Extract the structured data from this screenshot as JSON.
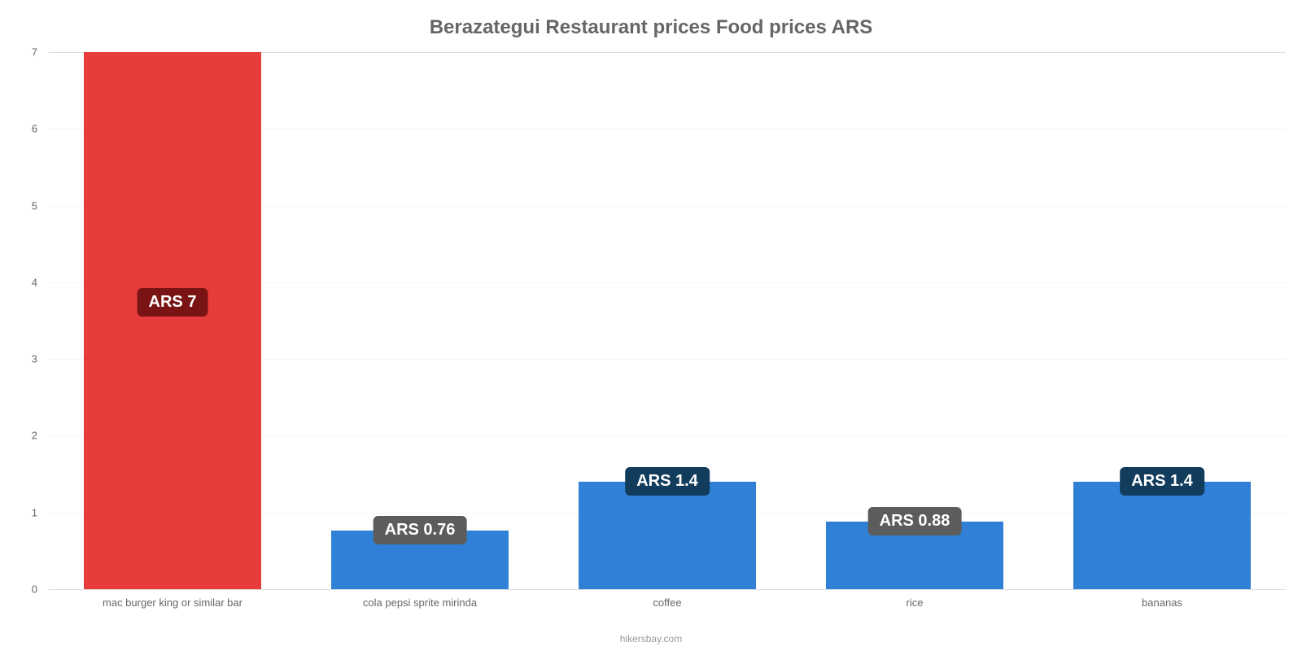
{
  "chart": {
    "type": "bar",
    "title": "Berazategui Restaurant prices Food prices ARS",
    "title_fontsize": 24,
    "title_color": "#666666",
    "background_color": "#ffffff",
    "grid_color": "#f4f4f4",
    "axis_color": "#dddddd",
    "label_color": "#666666",
    "label_fontsize": 13,
    "value_label_fontsize": 20,
    "bar_width_ratio": 0.72,
    "ylim": [
      0,
      7
    ],
    "ytick_step": 1,
    "yticks": [
      0,
      1,
      2,
      3,
      4,
      5,
      6,
      7
    ],
    "categories": [
      "mac burger king or similar bar",
      "cola pepsi sprite mirinda",
      "coffee",
      "rice",
      "bananas"
    ],
    "values": [
      7,
      0.76,
      1.4,
      0.88,
      1.4
    ],
    "value_labels": [
      "ARS 7",
      "ARS 0.76",
      "ARS 1.4",
      "ARS 0.88",
      "ARS 1.4"
    ],
    "bar_colors": [
      "#e83c3c",
      "#2f80d6",
      "#2f80d6",
      "#2f80d6",
      "#2f80d6"
    ],
    "badge_colors": [
      "#7a1414",
      "#5c5c5c",
      "#123c5c",
      "#5c5c5c",
      "#123c5c"
    ],
    "credit": "hikersbay.com",
    "credit_color": "#999999"
  }
}
